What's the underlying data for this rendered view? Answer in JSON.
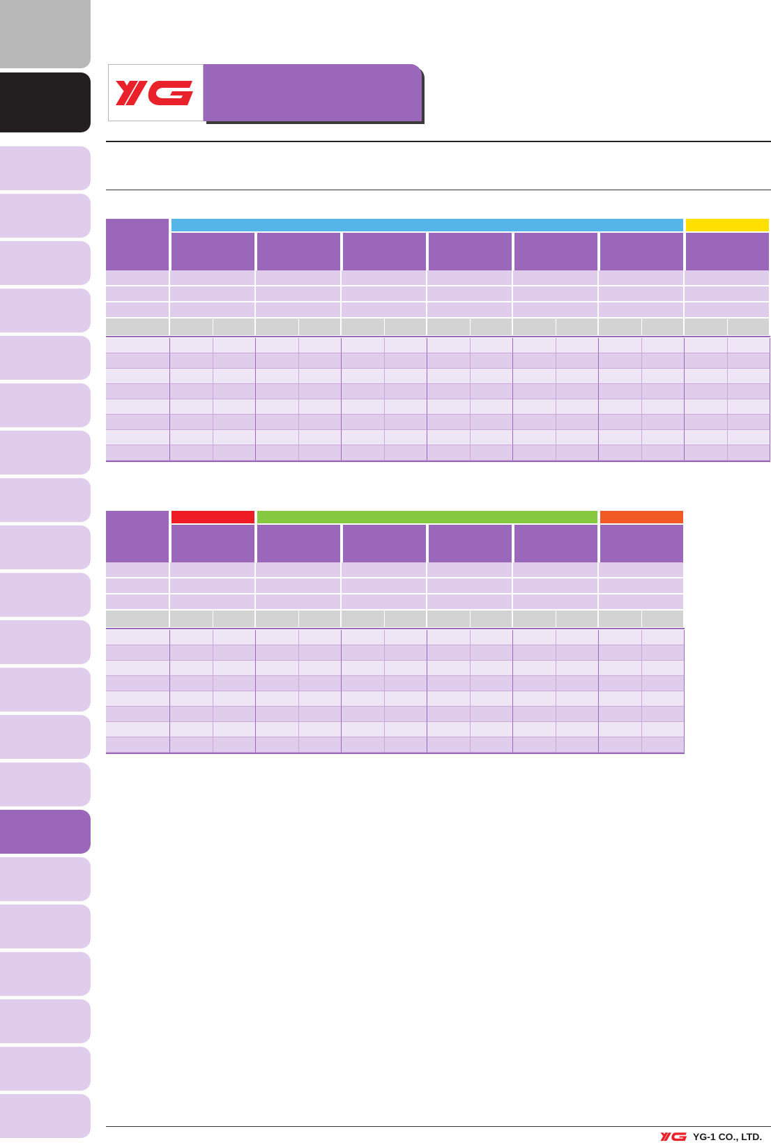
{
  "brand": {
    "footer_company": "YG-1 CO., LTD."
  },
  "colors": {
    "purple": "#9b67ba",
    "light_purple": "#e0cdeb",
    "lighter_purple": "#efe6f5",
    "gray_header": "#d3d3d3",
    "logo_red": "#e8212a",
    "band_blue": "#55b4e8",
    "band_yellow": "#ffe000",
    "band_red": "#ee1c25",
    "band_green": "#86c941",
    "band_orange": "#f15a24"
  },
  "table1": {
    "bands": [
      {
        "color": "#55b4e8",
        "span": 6
      },
      {
        "color": "#ffe000",
        "span": 1
      }
    ],
    "groups": 7,
    "data_rows": 8
  },
  "table2": {
    "bands": [
      {
        "color": "#ee1c25",
        "span": 1
      },
      {
        "color": "#86c941",
        "span": 4
      },
      {
        "color": "#f15a24",
        "span": 1
      }
    ],
    "groups": 6,
    "data_rows": 8
  }
}
